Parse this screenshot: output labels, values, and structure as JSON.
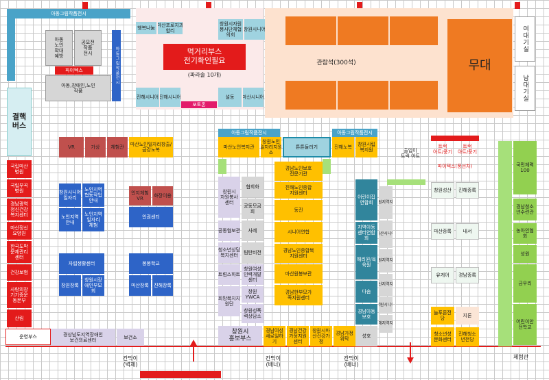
{
  "top": {
    "exhibit_top": "아동그림작품전시",
    "exhibit_side": "아동그림작품전시",
    "child_art": "아동\n노인\n확대\n예방",
    "crafts": "공모전\n작품\n전시",
    "pie": "파이텍스",
    "disabled_art": "아동,장애인,노인\n작품",
    "food_booth": "먹거리부스\n전기확인필요",
    "parasol": "(파라솔 10개)",
    "photo_booth": "포토존",
    "audience": "관람석(300석)",
    "stage": "무대",
    "fitting_f": "여대기실",
    "fitting_m": "남대기실",
    "tents": [
      "행복나눔",
      "마산포로지과\n합리",
      "창원시자원\n봉사단체협\n의회",
      "창원시니어",
      "진해시니어",
      "진해시니어",
      "설동",
      "마산시니어"
    ]
  },
  "west": {
    "bus": "결핵\n버스",
    "col": [
      "국립마산\n병원",
      "국립부곡\n병원",
      "경남광역\n정신건강\n복지센터",
      "마산정신\n요양원",
      "한국도박\n문제관리\n센터",
      "건강보험",
      "사랑의장\n기기증운\n동본부",
      "산림"
    ],
    "onsite": "운영부스"
  },
  "vr_row": [
    "VR",
    "가상",
    "체험관",
    "마산노인일자리창출/\n금강노복"
  ],
  "blue_left": [
    "창원시니어\n일자리",
    "노인지역\n협동작업\n안내",
    "노인지역\n안내",
    "노인지역\n일자리\n체험",
    "지원센터",
    "자립생활센터",
    "장원장록",
    "창원시장\n애인부모\n회",
    "마산장록",
    "진해장록",
    "기타"
  ],
  "mid_items": [
    "인지체험\nVR",
    "화장이용",
    "인권센터",
    "봉봉학교"
  ],
  "bottom": [
    "경상남도지역장애인\n보건의료센터",
    "보건소",
    "칸막이\n(벽체)",
    "칸막이\n(배너)",
    "칸막이\n(배너)",
    "체험관"
  ],
  "center": {
    "hdr1": "아동그림작품전시",
    "hdr2": "아동그림작품전시",
    "purple": [
      "창원시\n자원봉사\n센터",
      "협회화",
      "공동모금\n회",
      "공동협보관",
      "사례",
      "청소년상담\n복지센터",
      "팀탄비전",
      "트럼스하트",
      "창원여성\n인력개발\n센터",
      "희망복지지\n원단",
      "창원\nYWCA",
      "창원성폭\n력상담소",
      "창원시\n홍보부스"
    ],
    "yellow": [
      "마산노인복지관",
      "창원노인\n일자리지원\n소",
      "경남노인보호\n전문기관",
      "진해노인종합\n지원센터",
      "동진",
      "시니어연합",
      "경남노인종합복\n지원센터",
      "마산원봉보관",
      "경남한부모가\n족지원센터",
      "경남여성\n새로일하\n기",
      "경남건강\n가정지원\n센터",
      "창원시마\n산건강가\n정",
      "경남가정\n위탁"
    ],
    "cyan": [
      "튼튼들러기",
      "진해노복",
      "창원시립\n복지원",
      "어린이집\n연합회",
      "지역아동\n센터연합\n회",
      "해리원/육\n육원",
      "다솜",
      "경남아동\n보호",
      "성호"
    ],
    "dashed_col": [
      "창원지역자활",
      "마산시니어",
      "창원지역자활",
      "마산지역자활",
      "창원시니어",
      "진해지역자활",
      "진해시니어"
    ],
    "note": "출입이\n트럭 아트"
  },
  "east": {
    "truck1": "트럭\n아트/풍기",
    "truck2": "트럭\n아트/풍기",
    "pie": "파이텍스(풍선차)",
    "pairs": [
      [
        "창원성산",
        "진해종록"
      ],
      [
        "마산종록",
        "내서"
      ],
      [
        "유게어",
        "경남종록"
      ],
      [
        "늘푸른전\n당",
        "지론"
      ],
      [
        "청소년성\n문화센터",
        "진해청소\n년전당"
      ]
    ],
    "green_col": [
      "국민체력\n100",
      "경남청소\n년수련관",
      "농아인협\n회",
      "성원",
      "금우리",
      "어린이안\n전학교"
    ]
  }
}
